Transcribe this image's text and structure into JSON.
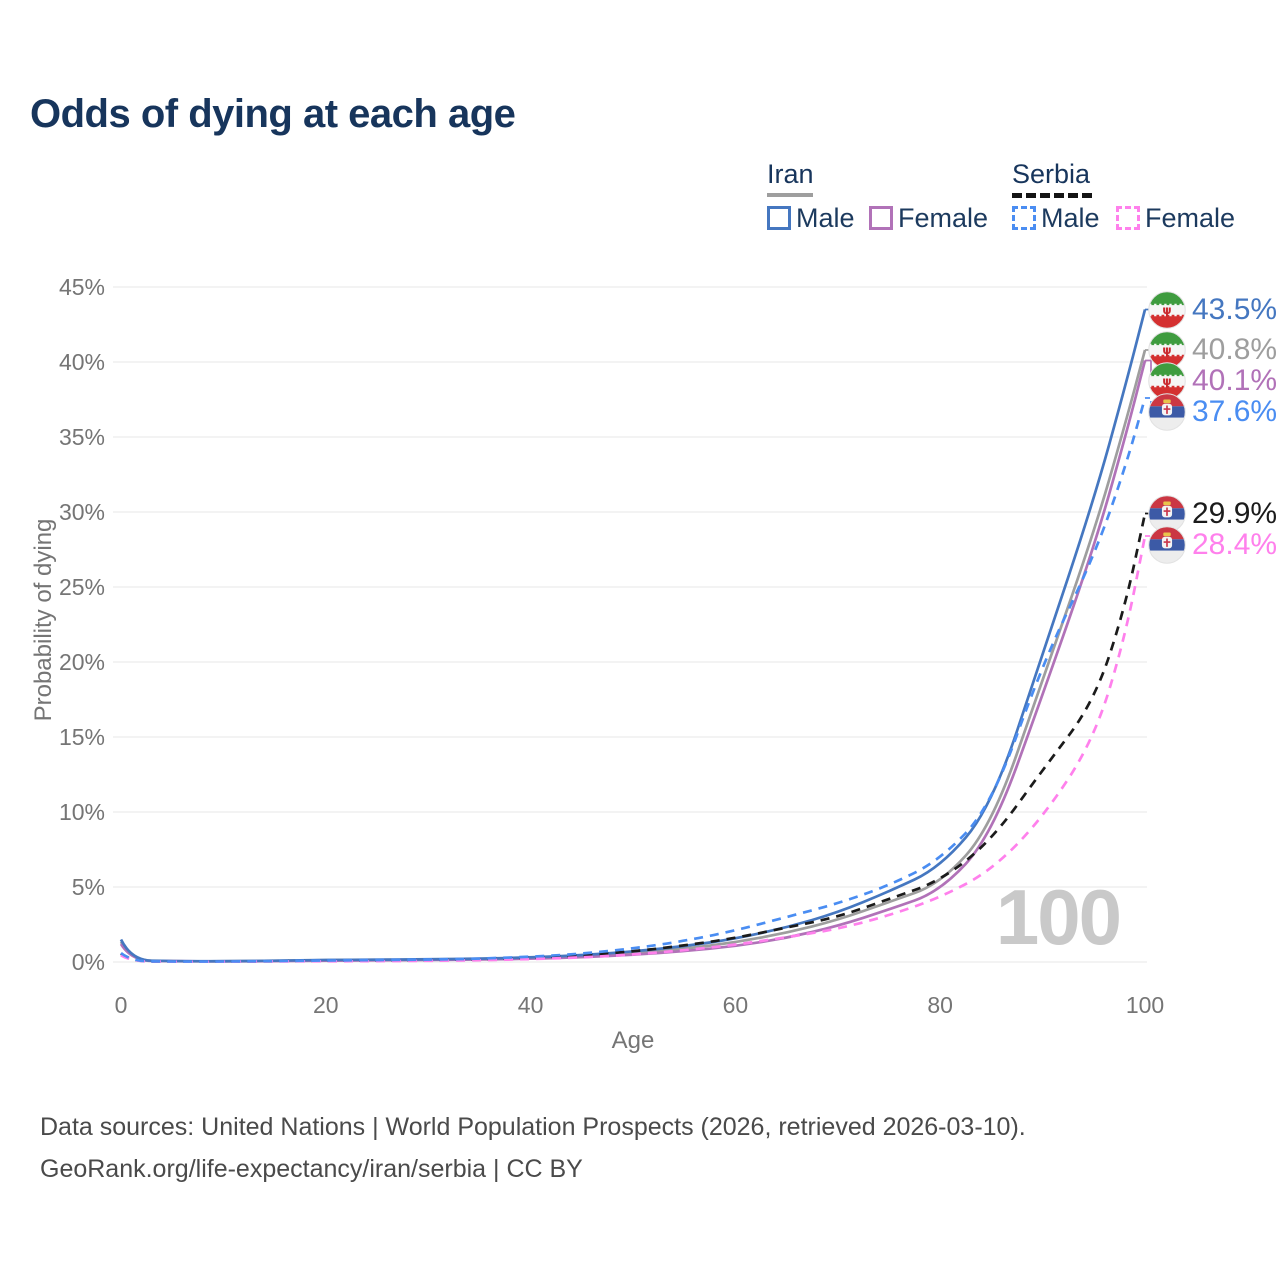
{
  "title": "Odds of dying at each age",
  "legend": {
    "groups": [
      {
        "name": "Iran",
        "line_style": "solid",
        "items": [
          {
            "label": "Male",
            "color": "#4577c0"
          },
          {
            "label": "Female",
            "color": "#b172b8"
          }
        ]
      },
      {
        "name": "Serbia",
        "line_style": "dashed",
        "items": [
          {
            "label": "Male",
            "color": "#4a8df2"
          },
          {
            "label": "Female",
            "color": "#ff80ec"
          }
        ]
      }
    ]
  },
  "chart_data": {
    "type": "line",
    "title": "Odds of dying at each age",
    "xlabel": "Age",
    "ylabel": "Probability of dying",
    "xlim": [
      0,
      100
    ],
    "ylim": [
      0,
      45
    ],
    "x_ticks": [
      0,
      20,
      40,
      60,
      80,
      100
    ],
    "y_ticks": [
      0,
      5,
      10,
      15,
      20,
      25,
      30,
      35,
      40,
      45
    ],
    "y_tick_suffix": "%",
    "grid": "horizontal",
    "legend_position": "top-right",
    "watermark": "100",
    "x": [
      0,
      1,
      5,
      10,
      15,
      20,
      25,
      30,
      35,
      40,
      45,
      50,
      55,
      60,
      65,
      70,
      75,
      80,
      85,
      90,
      95,
      98,
      100
    ],
    "series": [
      {
        "name": "Iran Male",
        "country": "iran",
        "sex": "male",
        "color": "#4577c0",
        "dashed": false,
        "end_label": "43.5%",
        "values": [
          1.5,
          0.12,
          0.06,
          0.05,
          0.09,
          0.14,
          0.16,
          0.18,
          0.22,
          0.3,
          0.45,
          0.7,
          1.05,
          1.55,
          2.3,
          3.3,
          4.7,
          6.3,
          10.3,
          20.5,
          30.8,
          38.2,
          43.5
        ]
      },
      {
        "name": "Iran Total",
        "country": "iran",
        "sex": "both",
        "color": "#9e9e9e",
        "dashed": false,
        "end_label": "40.8%",
        "values": [
          1.35,
          0.11,
          0.05,
          0.04,
          0.08,
          0.12,
          0.14,
          0.16,
          0.19,
          0.26,
          0.38,
          0.58,
          0.88,
          1.3,
          1.95,
          2.8,
          4.0,
          5.2,
          9.0,
          18.8,
          28.6,
          35.7,
          40.8
        ]
      },
      {
        "name": "Iran Female",
        "country": "iran",
        "sex": "female",
        "color": "#b172b8",
        "dashed": false,
        "end_label": "40.1%",
        "values": [
          1.2,
          0.1,
          0.05,
          0.04,
          0.06,
          0.09,
          0.11,
          0.13,
          0.16,
          0.22,
          0.32,
          0.48,
          0.72,
          1.05,
          1.6,
          2.4,
          3.5,
          4.7,
          8.4,
          17.8,
          27.6,
          34.8,
          40.1
        ]
      },
      {
        "name": "Serbia Male",
        "country": "serbia",
        "sex": "male",
        "color": "#4a8df2",
        "dashed": true,
        "end_label": "37.6%",
        "values": [
          0.6,
          0.05,
          0.03,
          0.03,
          0.06,
          0.1,
          0.13,
          0.16,
          0.22,
          0.35,
          0.55,
          0.9,
          1.4,
          2.1,
          3.0,
          3.9,
          5.1,
          6.8,
          10.4,
          19.9,
          27.0,
          32.8,
          37.6
        ]
      },
      {
        "name": "Serbia Total",
        "country": "serbia",
        "sex": "both",
        "color": "#1b1b1b",
        "dashed": true,
        "end_label": "29.9%",
        "values": [
          0.55,
          0.04,
          0.03,
          0.03,
          0.05,
          0.08,
          0.1,
          0.13,
          0.18,
          0.28,
          0.45,
          0.7,
          1.1,
          1.6,
          2.3,
          3.0,
          4.2,
          5.4,
          8.1,
          12.8,
          17.3,
          23.5,
          29.9
        ]
      },
      {
        "name": "Serbia Female",
        "country": "serbia",
        "sex": "female",
        "color": "#ff80ec",
        "dashed": true,
        "end_label": "28.4%",
        "values": [
          0.45,
          0.04,
          0.02,
          0.02,
          0.04,
          0.05,
          0.06,
          0.08,
          0.12,
          0.19,
          0.3,
          0.5,
          0.78,
          1.15,
          1.65,
          2.2,
          3.1,
          4.3,
          6.1,
          9.6,
          14.8,
          21.5,
          28.4
        ]
      }
    ]
  },
  "icons": {
    "iran_flag": {
      "green": "#3f9c3f",
      "white": "#f6f6f6",
      "red": "#d43030",
      "emblem": "#c9282d"
    },
    "serbia_flag": {
      "red": "#cb3743",
      "blue": "#3c5aa6",
      "white": "#ededed",
      "crown": "#e9c44c",
      "shield": "#f4f4f4",
      "cross": "#c9364b"
    }
  },
  "footer": {
    "line1": "Data sources: United Nations | World Population Prospects (2026, retrieved 2026-03-10).",
    "line2": "GeoRank.org/life-expectancy/iran/serbia | CC BY"
  }
}
